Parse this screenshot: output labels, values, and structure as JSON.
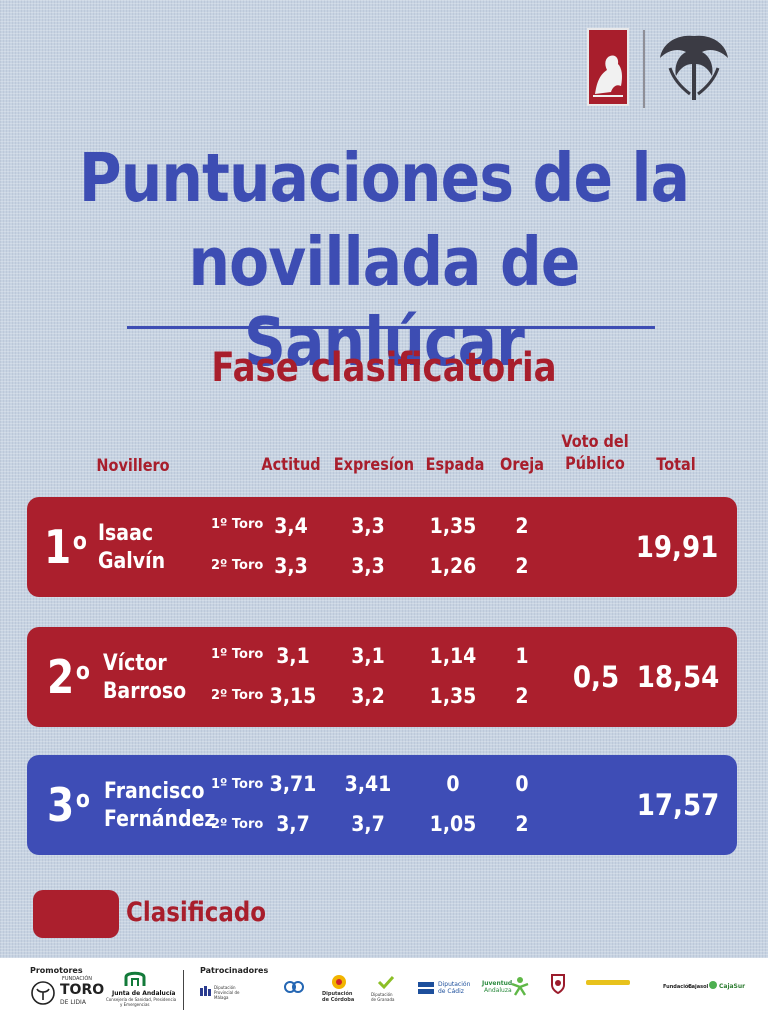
{
  "title": {
    "line1": "Puntuaciones de la",
    "line2": "novillada de Sanlúcar",
    "subtitle": "Fase clasificatoria"
  },
  "columns": {
    "novillero": "Novillero",
    "actitud": "Actitud",
    "expresion": "Expresíon",
    "espada": "Espada",
    "oreja": "Oreja",
    "voto_line1": "Voto del",
    "voto_line2": "Público",
    "total": "Total"
  },
  "rows": [
    {
      "position": "1",
      "suffix": "o",
      "first_name": "Isaac",
      "last_name": "Galvín",
      "status": "clasificado",
      "toro1": {
        "label": "1º Toro",
        "actitud": "3,4",
        "expresion": "3,3",
        "espada": "1,35",
        "oreja": "2"
      },
      "toro2": {
        "label": "2º Toro",
        "actitud": "3,3",
        "expresion": "3,3",
        "espada": "1,26",
        "oreja": "2"
      },
      "voto": "",
      "total": "19,91"
    },
    {
      "position": "2",
      "suffix": "o",
      "first_name": "Víctor",
      "last_name": "Barroso",
      "status": "clasificado",
      "toro1": {
        "label": "1º Toro",
        "actitud": "3,1",
        "expresion": "3,1",
        "espada": "1,14",
        "oreja": "1"
      },
      "toro2": {
        "label": "2º Toro",
        "actitud": "3,15",
        "expresion": "3,2",
        "espada": "1,35",
        "oreja": "2"
      },
      "voto": "0,5",
      "total": "18,54"
    },
    {
      "position": "3",
      "suffix": "o",
      "first_name": "Francisco",
      "last_name": "Fernández",
      "status": "no clasificado",
      "toro1": {
        "label": "1º Toro",
        "actitud": "3,71",
        "expresion": "3,41",
        "espada": "0",
        "oreja": "0"
      },
      "toro2": {
        "label": "2º Toro",
        "actitud": "3,7",
        "expresion": "3,7",
        "espada": "1,05",
        "oreja": "2"
      },
      "voto": "",
      "total": "17,57"
    }
  ],
  "legend": {
    "label": "Clasificado",
    "color": "#ab1f2d"
  },
  "colors": {
    "title_blue": "#3d4db3",
    "accent_red": "#a81e2c",
    "row_blue": "#3e4db6"
  },
  "footer": {
    "promotores_label": "Promotores",
    "patrocinadores_label": "Patrocinadores",
    "logos": {
      "toro_top": "FUNDACIÓN",
      "toro_main": "TORO",
      "toro_bottom": "DE LIDIA",
      "junta_main": "Junta de Andalucía",
      "junta_sub1": "Consejería de Sanidad, Presidencia",
      "junta_sub2": "y Emergencias",
      "malaga": "Diputación Provincial de Málaga",
      "cordoba1": "Diputación",
      "cordoba2": "de Córdoba",
      "granada1": "Diputación",
      "granada2": "de Granada",
      "cadiz1": "Diputación",
      "cadiz2": "de Cádiz",
      "juventud1": "Juventud",
      "juventud2": "Andaluza",
      "fundacion_caja": "Fundación",
      "cajasol": "Cajasol",
      "cajasur": "CajaSur"
    }
  }
}
